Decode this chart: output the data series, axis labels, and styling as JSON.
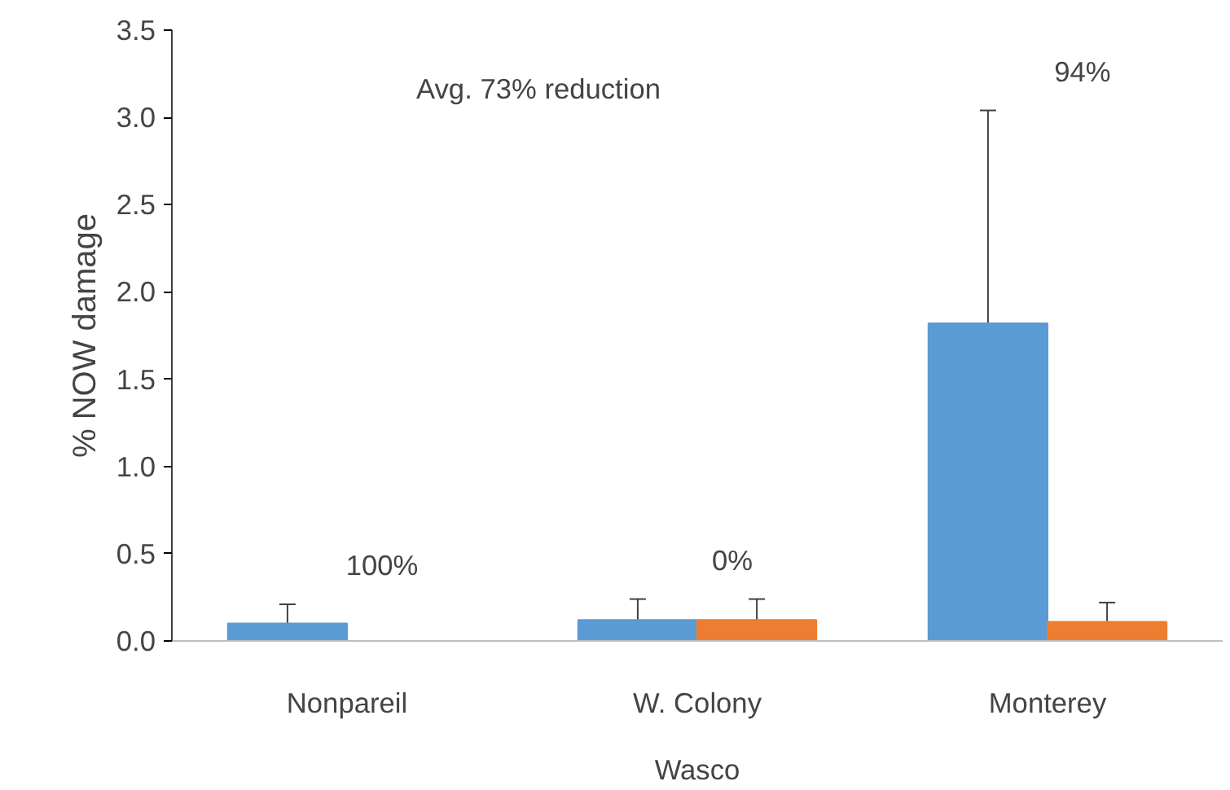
{
  "chart_data": {
    "type": "bar",
    "ylabel": "% NOW damage",
    "xlabel": "Wasco",
    "categories": [
      "Nonpareil",
      "W. Colony",
      "Monterey"
    ],
    "series": [
      {
        "color": "#5b9bd5",
        "values": [
          0.1,
          0.12,
          1.82
        ],
        "errors": [
          0.11,
          0.12,
          1.22
        ]
      },
      {
        "color": "#ed7d31",
        "values": [
          0,
          0.12,
          0.11
        ],
        "errors": [
          null,
          0.12,
          0.11
        ]
      }
    ],
    "ylim": [
      0,
      3.5
    ],
    "yticks": [
      {
        "value": 0,
        "label": "0.0"
      },
      {
        "value": 0.5,
        "label": "0.5"
      },
      {
        "value": 1,
        "label": "1.0"
      },
      {
        "value": 1.5,
        "label": "1.5"
      },
      {
        "value": 2,
        "label": "2.0"
      },
      {
        "value": 2.5,
        "label": "2.5"
      },
      {
        "value": 3,
        "label": "3.0"
      },
      {
        "value": 3.5,
        "label": "3.5"
      }
    ],
    "grid": false,
    "annotations": [
      "Avg. 73% reduction",
      "100%",
      "0%",
      "94%"
    ]
  }
}
